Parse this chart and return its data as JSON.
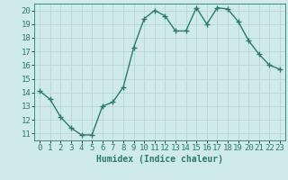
{
  "x": [
    0,
    1,
    2,
    3,
    4,
    5,
    6,
    7,
    8,
    9,
    10,
    11,
    12,
    13,
    14,
    15,
    16,
    17,
    18,
    19,
    20,
    21,
    22,
    23
  ],
  "y": [
    14.1,
    13.5,
    12.2,
    11.4,
    10.9,
    10.9,
    13.0,
    13.3,
    14.4,
    17.3,
    19.4,
    20.0,
    19.6,
    18.5,
    18.5,
    20.2,
    19.0,
    20.2,
    20.1,
    19.2,
    17.8,
    16.8,
    16.0,
    15.7
  ],
  "line_color": "#2d7a6e",
  "marker": "+",
  "bg_color": "#ceeaea",
  "grid_color": "#b8d4d4",
  "xlabel": "Humidex (Indice chaleur)",
  "xlim": [
    -0.5,
    23.5
  ],
  "ylim": [
    10.5,
    20.5
  ],
  "yticks": [
    11,
    12,
    13,
    14,
    15,
    16,
    17,
    18,
    19,
    20
  ],
  "xticks": [
    0,
    1,
    2,
    3,
    4,
    5,
    6,
    7,
    8,
    9,
    10,
    11,
    12,
    13,
    14,
    15,
    16,
    17,
    18,
    19,
    20,
    21,
    22,
    23
  ],
  "xlabel_fontsize": 7,
  "tick_fontsize": 6.5,
  "line_width": 1.0,
  "marker_size": 4
}
